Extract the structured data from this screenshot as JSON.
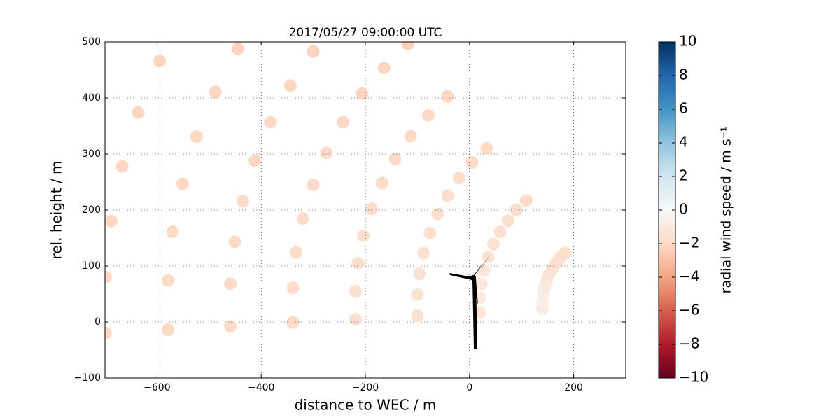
{
  "chart_data": {
    "type": "scatter",
    "title": "2017/05/27 09:00:00 UTC",
    "xlabel": "distance to WEC / m",
    "ylabel": "rel. height / m",
    "colorbar_label": "radial wind speed / m s⁻¹",
    "xlim": [
      -700,
      300
    ],
    "ylim": [
      -100,
      500
    ],
    "xticks": [
      {
        "value": -600,
        "label": "−600"
      },
      {
        "value": -400,
        "label": "−400"
      },
      {
        "value": -200,
        "label": "−200"
      },
      0,
      200
    ],
    "yticks": [
      {
        "value": -100,
        "label": "−100"
      },
      0,
      100,
      200,
      300,
      400,
      500
    ],
    "grid": true,
    "clim": [
      -10,
      10
    ],
    "cticks": [
      {
        "value": -10,
        "label": "−10"
      },
      {
        "value": -8,
        "label": "−8"
      },
      {
        "value": -6,
        "label": "−6"
      },
      {
        "value": -4,
        "label": "−4"
      },
      {
        "value": -2,
        "label": "−2"
      },
      0,
      2,
      4,
      6,
      8,
      10
    ],
    "colormap": [
      "#67001f",
      "#b2182b",
      "#d6604d",
      "#f4a582",
      "#fddbc7",
      "#f7f7f7",
      "#d1e5f0",
      "#92c5de",
      "#4393c3",
      "#2166ac",
      "#053061"
    ],
    "x": [
      140,
      20,
      -100,
      -219,
      -339,
      -459,
      -579,
      -699,
      140,
      20,
      -100,
      -219,
      -339,
      -459,
      -579,
      -699,
      142,
      23,
      -96,
      -214,
      -333,
      -451,
      -570,
      -688,
      144,
      28,
      -88,
      -204,
      -320,
      -435,
      -551,
      -667,
      148,
      36,
      -76,
      -188,
      -300,
      -412,
      -524,
      -636,
      153,
      46,
      -61,
      -168,
      -275,
      -382,
      -488,
      -595,
      159,
      59,
      -42,
      -143,
      -243,
      -344,
      -445,
      167,
      74,
      -20,
      -113,
      -206,
      -300,
      175,
      90,
      5,
      -79,
      -164,
      184,
      109,
      33,
      -42,
      -118
    ],
    "y": [
      24,
      17,
      11,
      5,
      -1,
      -8,
      -14,
      -20,
      36,
      43,
      49,
      55,
      61,
      68,
      74,
      80,
      49,
      68,
      86,
      105,
      124,
      143,
      161,
      180,
      61,
      92,
      123,
      154,
      185,
      216,
      247,
      278,
      73,
      116,
      159,
      202,
      245,
      288,
      331,
      374,
      85,
      139,
      193,
      248,
      302,
      357,
      411,
      466,
      95,
      161,
      226,
      291,
      357,
      422,
      488,
      106,
      181,
      257,
      332,
      408,
      483,
      115,
      200,
      285,
      369,
      454,
      123,
      217,
      310,
      403,
      496
    ],
    "values": [
      -1.0,
      -1.3,
      -1.6,
      -1.8,
      -2.0,
      -2.0,
      -2.1,
      -2.1,
      -0.6,
      -1.0,
      -1.4,
      -1.7,
      -1.9,
      -2.0,
      -2.0,
      -2.1,
      -0.7,
      -1.1,
      -1.5,
      -1.8,
      -1.9,
      -2.0,
      -2.0,
      -2.1,
      -1.0,
      -1.3,
      -1.6,
      -1.8,
      -1.9,
      -2.0,
      -2.1,
      -2.1,
      -1.2,
      -1.5,
      -1.7,
      -1.9,
      -2.0,
      -2.1,
      -2.1,
      -2.2,
      -1.4,
      -1.6,
      -1.8,
      -1.9,
      -2.0,
      -2.1,
      -2.2,
      -2.3,
      -1.5,
      -1.7,
      -1.8,
      -2.0,
      -2.1,
      -2.2,
      -2.3,
      -1.6,
      -1.8,
      -1.9,
      -2.0,
      -2.2,
      -2.3,
      -1.7,
      -1.8,
      -2.0,
      -2.1,
      -2.2,
      -1.8,
      -1.9,
      -2.0,
      -2.1,
      -2.3
    ]
  }
}
